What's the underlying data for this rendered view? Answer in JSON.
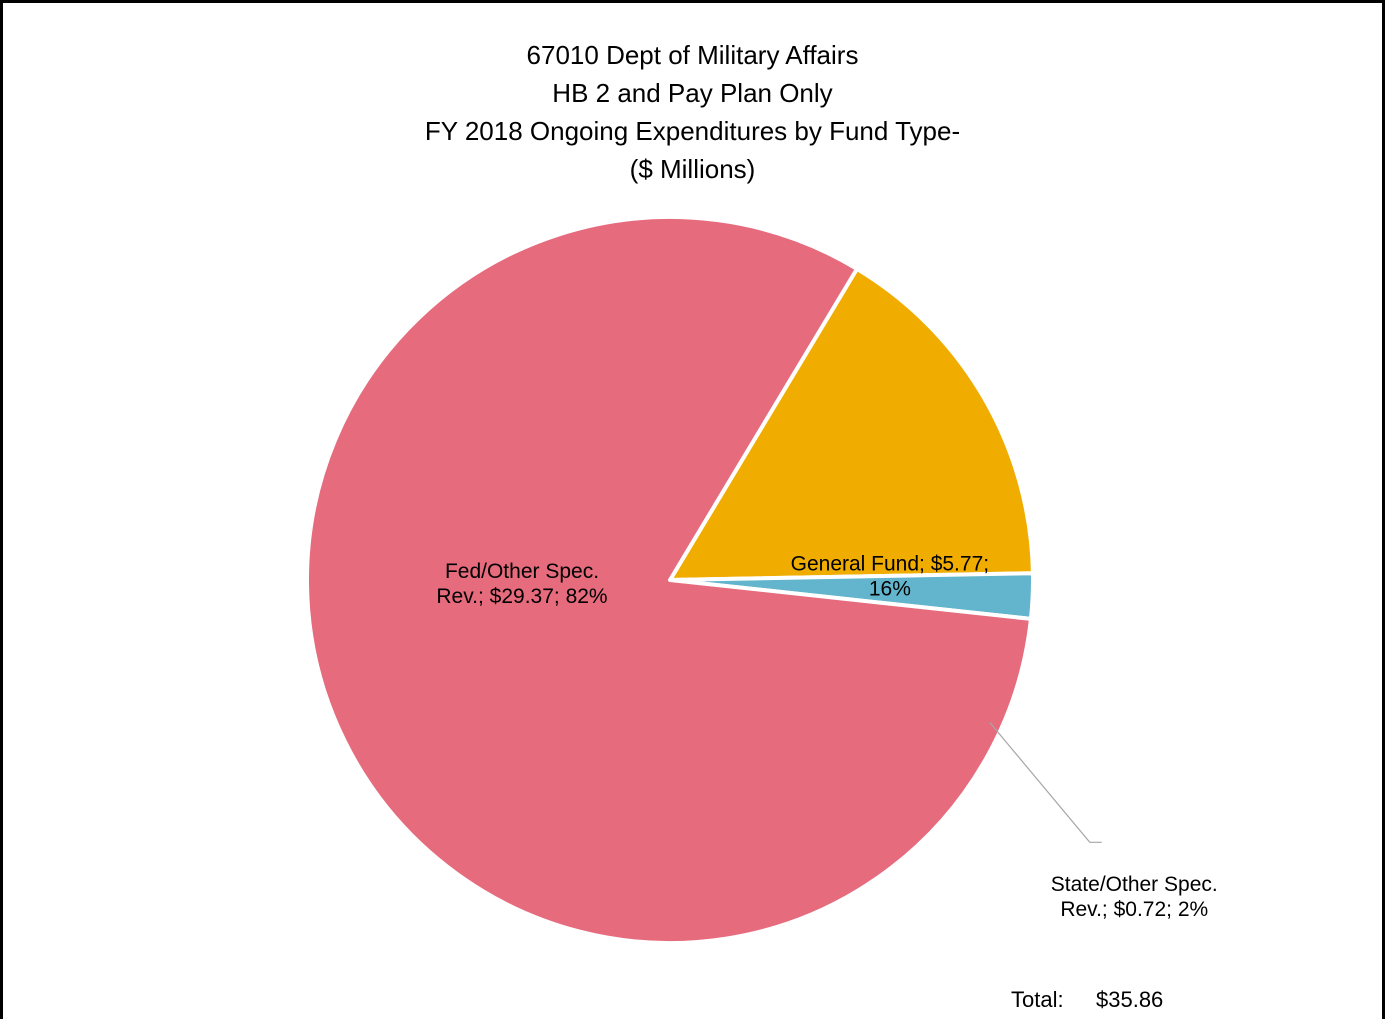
{
  "chart_data": {
    "type": "pie",
    "title_lines": [
      "67010 Dept of Military Affairs",
      "HB 2 and Pay Plan Only",
      "FY 2018 Ongoing Expenditures by Fund Type-",
      "($ Millions)"
    ],
    "slices": [
      {
        "name": "General Fund",
        "value": 5.77,
        "percent": 16,
        "color": "#F0AD00",
        "label_lines": [
          "General Fund; $5.77;",
          "16%"
        ]
      },
      {
        "name": "State/Other Spec. Rev.",
        "value": 0.72,
        "percent": 2,
        "color": "#62B5CC",
        "label_lines": [
          "State/Other Spec.",
          "Rev.; $0.72; 2%"
        ]
      },
      {
        "name": "Fed/Other Spec. Rev.",
        "value": 29.37,
        "percent": 82,
        "color": "#E56B7D",
        "label_lines": [
          "Fed/Other Spec.",
          "Rev.; $29.37; 82%"
        ]
      }
    ],
    "total_label": "Total:",
    "total_value": "$35.86"
  }
}
